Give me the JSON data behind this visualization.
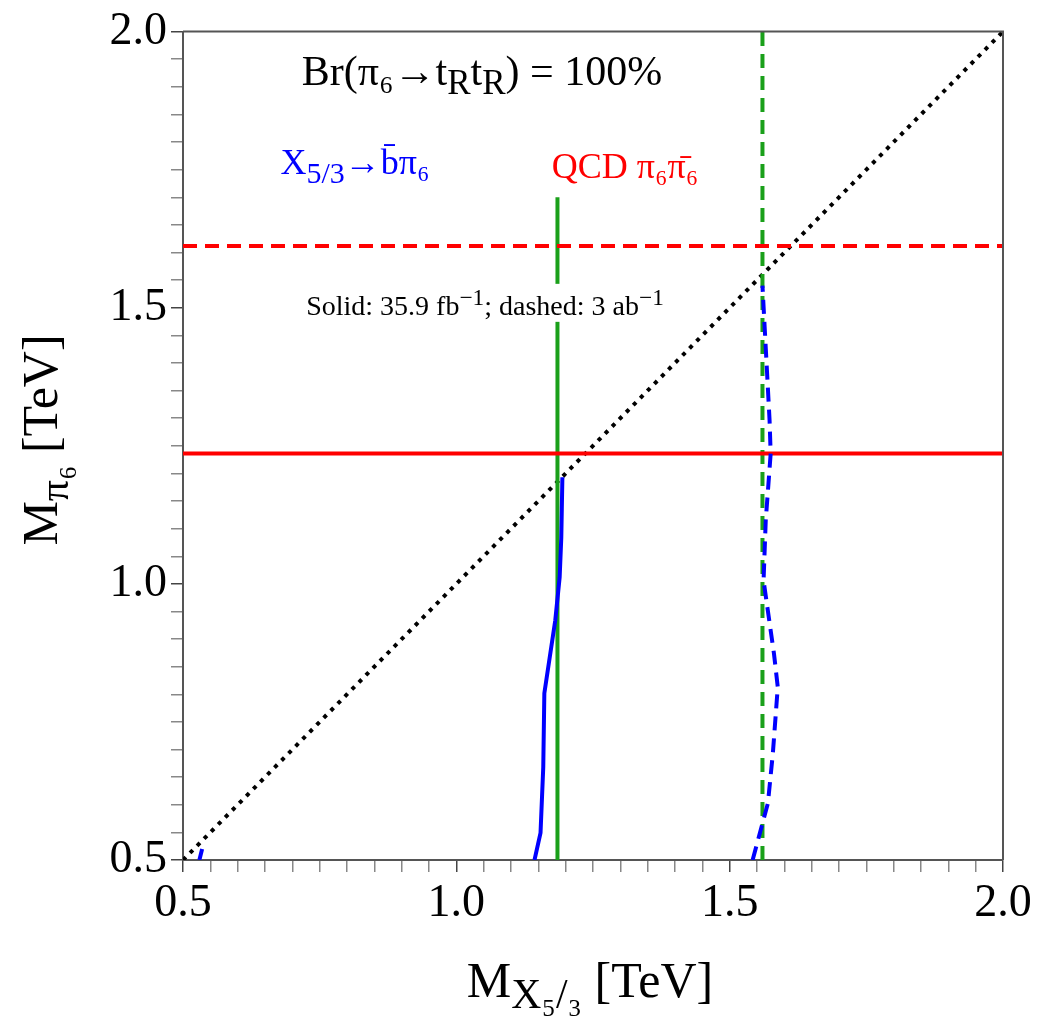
{
  "chart_data": {
    "type": "line",
    "title": "Br(π₆→t$_{R}$t$_{R}$) = 100%",
    "xlabel": "M$_{X₅/₃}$ [TeV]",
    "ylabel": "M$_{π₆}$ [TeV]",
    "annotations": [
      "Solid: 35.9 fb$^{−1}$; dashed: 3 ab$^{−1}$"
    ],
    "xlim": [
      0.5,
      2.0
    ],
    "ylim": [
      0.5,
      2.0
    ],
    "xticks": [
      0.5,
      {
        "value": 0.55,
        "label": null
      },
      {
        "value": 0.6,
        "label": null
      },
      {
        "value": 0.65,
        "label": null
      },
      {
        "value": 0.7,
        "label": null
      },
      {
        "value": 0.75,
        "label": null
      },
      {
        "value": 0.8,
        "label": null
      },
      {
        "value": 0.85,
        "label": null
      },
      {
        "value": 0.9,
        "label": null
      },
      {
        "value": 0.95,
        "label": null
      },
      {
        "value": 1.0,
        "label": "1.0"
      },
      {
        "value": 1.05,
        "label": null
      },
      {
        "value": 1.1,
        "label": null
      },
      {
        "value": 1.15,
        "label": null
      },
      {
        "value": 1.2,
        "label": null
      },
      {
        "value": 1.25,
        "label": null
      },
      {
        "value": 1.3,
        "label": null
      },
      {
        "value": 1.35,
        "label": null
      },
      {
        "value": 1.4,
        "label": null
      },
      {
        "value": 1.45,
        "label": null
      },
      1.5,
      {
        "value": 1.55,
        "label": null
      },
      {
        "value": 1.6,
        "label": null
      },
      {
        "value": 1.65,
        "label": null
      },
      {
        "value": 1.7,
        "label": null
      },
      {
        "value": 1.75,
        "label": null
      },
      {
        "value": 1.8,
        "label": null
      },
      {
        "value": 1.85,
        "label": null
      },
      {
        "value": 1.9,
        "label": null
      },
      {
        "value": 1.95,
        "label": null
      },
      {
        "value": 2.0,
        "label": "2.0"
      }
    ],
    "yticks": [
      0.5,
      {
        "value": 0.55,
        "label": null
      },
      {
        "value": 0.6,
        "label": null
      },
      {
        "value": 0.65,
        "label": null
      },
      {
        "value": 0.7,
        "label": null
      },
      {
        "value": 0.75,
        "label": null
      },
      {
        "value": 0.8,
        "label": null
      },
      {
        "value": 0.85,
        "label": null
      },
      {
        "value": 0.9,
        "label": null
      },
      {
        "value": 0.95,
        "label": null
      },
      {
        "value": 1.0,
        "label": "1.0"
      },
      {
        "value": 1.05,
        "label": null
      },
      {
        "value": 1.1,
        "label": null
      },
      {
        "value": 1.15,
        "label": null
      },
      {
        "value": 1.2,
        "label": null
      },
      {
        "value": 1.25,
        "label": null
      },
      {
        "value": 1.3,
        "label": null
      },
      {
        "value": 1.35,
        "label": null
      },
      {
        "value": 1.4,
        "label": null
      },
      {
        "value": 1.45,
        "label": null
      },
      1.5,
      {
        "value": 1.55,
        "label": null
      },
      {
        "value": 1.6,
        "label": null
      },
      {
        "value": 1.65,
        "label": null
      },
      {
        "value": 1.7,
        "label": null
      },
      {
        "value": 1.75,
        "label": null
      },
      {
        "value": 1.8,
        "label": null
      },
      {
        "value": 1.85,
        "label": null
      },
      {
        "value": 1.9,
        "label": null
      },
      {
        "value": 1.95,
        "label": null
      },
      {
        "value": 2.0,
        "label": "2.0"
      }
    ],
    "grid": false,
    "marker": "none",
    "series": [
      {
        "name": "X$_{5/3}$→b̄π₆",
        "color": "#0000ff",
        "line_style": "solid",
        "x": [
          1.143,
          1.154,
          1.159,
          1.161,
          1.181,
          1.189,
          1.192,
          1.194
        ],
        "values": [
          0.5,
          0.549,
          0.668,
          0.802,
          0.934,
          1.012,
          1.084,
          1.193
        ]
      },
      {
        "color": "#0000ff",
        "line_style": "solid",
        "x": [
          0.53,
          0.535
        ],
        "values": [
          0.5,
          0.52
        ]
      },
      {
        "color": "#0000ff",
        "line_style": "dashed",
        "x": [
          1.542,
          1.57,
          1.579,
          1.588,
          1.581,
          1.562,
          1.566,
          1.575,
          1.573,
          1.56
        ],
        "values": [
          0.5,
          0.603,
          0.693,
          0.813,
          0.874,
          1.006,
          1.115,
          1.236,
          1.296,
          1.54
        ]
      },
      {
        "name": "QCD π₆π̄₆",
        "color": "#ff0000",
        "line_style": "solid",
        "x": [
          0.5,
          2.0
        ],
        "values": [
          1.236,
          1.236
        ]
      },
      {
        "color": "#ff0000",
        "line_style": "dashed",
        "x": [
          0.5,
          2.0
        ],
        "values": [
          1.612,
          1.612
        ]
      },
      {
        "color": "#1aa01a",
        "line_style": "solid",
        "x": [
          1.185,
          1.185
        ],
        "values": [
          0.5,
          1.7
        ]
      },
      {
        "color": "#1aa01a",
        "line_style": "dashed",
        "x": [
          1.56,
          1.56
        ],
        "values": [
          0.5,
          2.0
        ]
      },
      {
        "color": "#000000",
        "line_style": "dotted",
        "x": [
          0.5,
          2.0
        ],
        "values": [
          0.5,
          2.0
        ]
      }
    ]
  }
}
